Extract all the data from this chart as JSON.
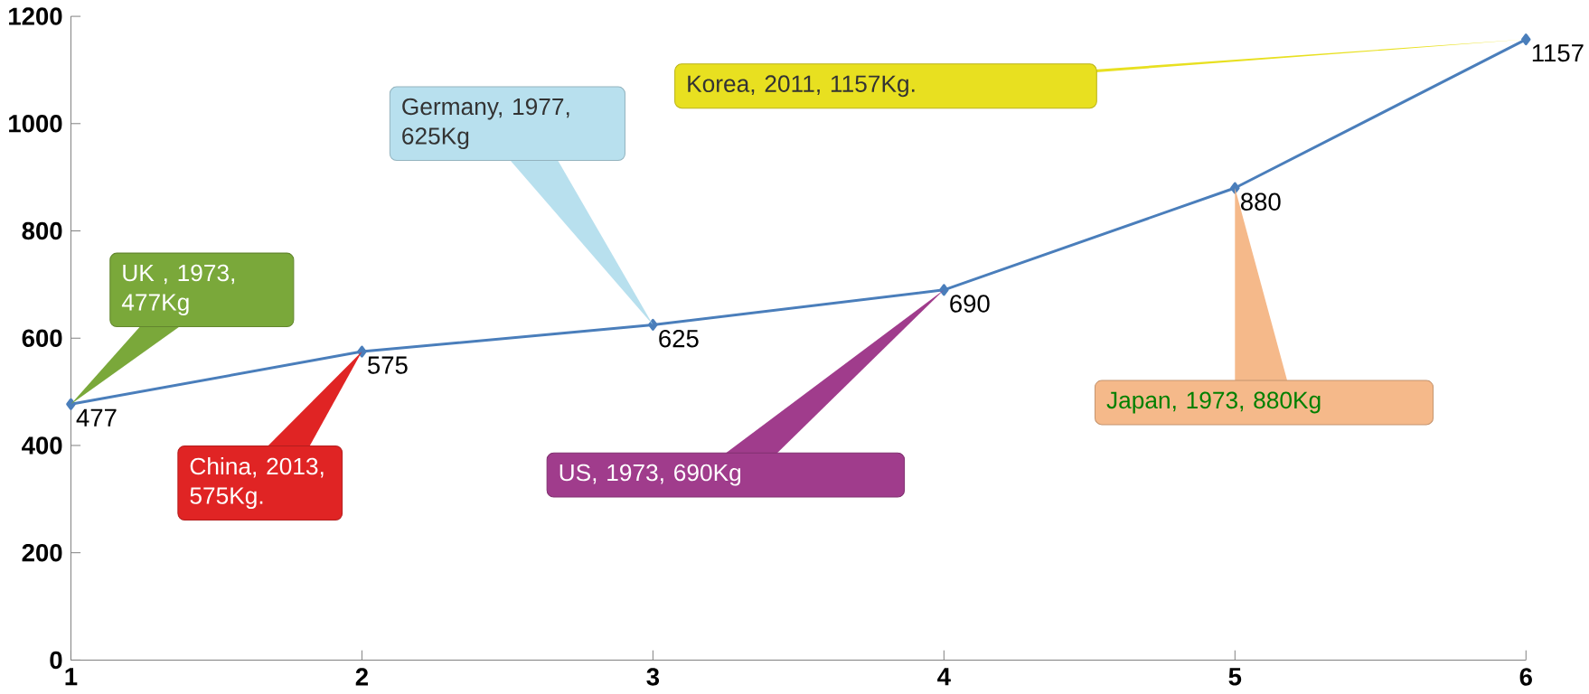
{
  "chart_data": {
    "type": "line",
    "x": [
      1,
      2,
      3,
      4,
      5,
      6
    ],
    "values": [
      477,
      575,
      625,
      690,
      880,
      1157
    ],
    "color": "#4a7ebb",
    "marker": "diamond",
    "data_labels": true,
    "xlim": [
      1,
      6
    ],
    "xticks": [
      1,
      2,
      3,
      4,
      5,
      6
    ],
    "ylim": [
      0,
      1200
    ],
    "yticks": [
      0,
      200,
      400,
      600,
      800,
      1000,
      1200
    ],
    "annotations": [
      "UK , 1973, 477Kg",
      "China, 2013, 575Kg.",
      "Germany, 1977, 625Kg",
      "US, 1973, 690Kg",
      "Japan, 1973, 880Kg",
      "Korea, 2011, 1157Kg."
    ]
  }
}
